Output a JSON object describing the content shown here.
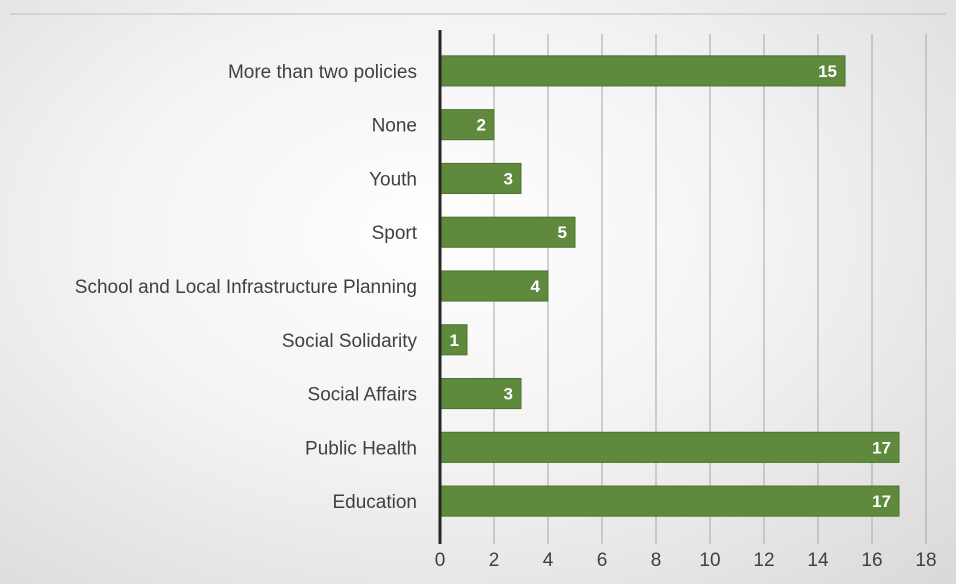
{
  "chart_data": {
    "type": "bar",
    "orientation": "horizontal",
    "title": "",
    "xlabel": "",
    "ylabel": "",
    "categories": [
      "More than two policies",
      "None",
      "Youth",
      "Sport",
      "School and Local Infrastructure Planning",
      "Social Solidarity",
      "Social Affairs",
      "Public Health",
      "Education"
    ],
    "values": [
      15,
      2,
      3,
      5,
      4,
      1,
      3,
      17,
      17
    ],
    "xlim": [
      0,
      18
    ],
    "x_ticks": [
      0,
      2,
      4,
      6,
      8,
      10,
      12,
      14,
      16,
      18
    ],
    "grid": "vertical",
    "data_labels": true,
    "legend": "none",
    "colors": {
      "bar": "#5f8a3d",
      "bar_edge": "#4b7330",
      "data_label": "#ffffff",
      "axis": "#262626",
      "grid": "#a6a6a6"
    }
  }
}
